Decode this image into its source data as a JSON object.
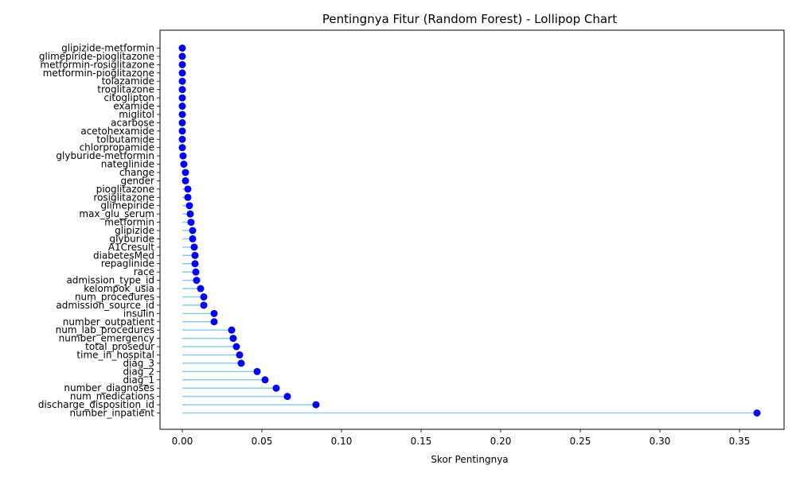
{
  "chart_data": {
    "type": "scatter",
    "subtype": "lollipop",
    "orientation": "horizontal",
    "title": "Pentingnya Fitur (Random Forest) - Lollipop Chart",
    "xlabel": "Skor Pentingnya",
    "ylabel": "",
    "xlim": [
      -0.014,
      0.378
    ],
    "x_ticks": [
      0.0,
      0.05,
      0.1,
      0.15,
      0.2,
      0.25,
      0.3,
      0.35
    ],
    "x_tick_labels": [
      "0.00",
      "0.05",
      "0.10",
      "0.15",
      "0.20",
      "0.25",
      "0.30",
      "0.35"
    ],
    "grid": false,
    "stem_color": "#87ceeb",
    "marker_color": "#0000ff",
    "features": [
      {
        "name": "number_inpatient",
        "value": 0.361
      },
      {
        "name": "discharge_disposition_id",
        "value": 0.084
      },
      {
        "name": "num_medications",
        "value": 0.066
      },
      {
        "name": "number_diagnoses",
        "value": 0.059
      },
      {
        "name": "diag_1",
        "value": 0.052
      },
      {
        "name": "diag_2",
        "value": 0.047
      },
      {
        "name": "diag_3",
        "value": 0.037
      },
      {
        "name": "time_in_hospital",
        "value": 0.036
      },
      {
        "name": "total_prosedur",
        "value": 0.034
      },
      {
        "name": "number_emergency",
        "value": 0.032
      },
      {
        "name": "num_lab_procedures",
        "value": 0.031
      },
      {
        "name": "number_outpatient",
        "value": 0.02
      },
      {
        "name": "insulin",
        "value": 0.02
      },
      {
        "name": "admission_source_id",
        "value": 0.0135
      },
      {
        "name": "num_procedures",
        "value": 0.0135
      },
      {
        "name": "kelompok_usia",
        "value": 0.0115
      },
      {
        "name": "admission_type_id",
        "value": 0.009
      },
      {
        "name": "race",
        "value": 0.0085
      },
      {
        "name": "repaglinide",
        "value": 0.008
      },
      {
        "name": "diabetesMed",
        "value": 0.008
      },
      {
        "name": "A1Cresult",
        "value": 0.0075
      },
      {
        "name": "glyburide",
        "value": 0.0065
      },
      {
        "name": "glipizide",
        "value": 0.0065
      },
      {
        "name": "metformin",
        "value": 0.0055
      },
      {
        "name": "max_glu_serum",
        "value": 0.005
      },
      {
        "name": "glimepiride",
        "value": 0.0045
      },
      {
        "name": "rosiglitazone",
        "value": 0.0035
      },
      {
        "name": "pioglitazone",
        "value": 0.0035
      },
      {
        "name": "gender",
        "value": 0.002
      },
      {
        "name": "change",
        "value": 0.002
      },
      {
        "name": "nateglinide",
        "value": 0.001
      },
      {
        "name": "glyburide-metformin",
        "value": 0.0005
      },
      {
        "name": "chlorpropamide",
        "value": 0.0
      },
      {
        "name": "tolbutamide",
        "value": 0.0
      },
      {
        "name": "acetohexamide",
        "value": 0.0
      },
      {
        "name": "acarbose",
        "value": 0.0
      },
      {
        "name": "miglitol",
        "value": 0.0
      },
      {
        "name": "examide",
        "value": 0.0
      },
      {
        "name": "citoglipton",
        "value": 0.0
      },
      {
        "name": "troglitazone",
        "value": 0.0
      },
      {
        "name": "tolazamide",
        "value": 0.0
      },
      {
        "name": "metformin-pioglitazone",
        "value": 0.0
      },
      {
        "name": "metformin-rosiglitazone",
        "value": 0.0
      },
      {
        "name": "glimepiride-pioglitazone",
        "value": 0.0
      },
      {
        "name": "glipizide-metformin",
        "value": 0.0
      }
    ]
  }
}
